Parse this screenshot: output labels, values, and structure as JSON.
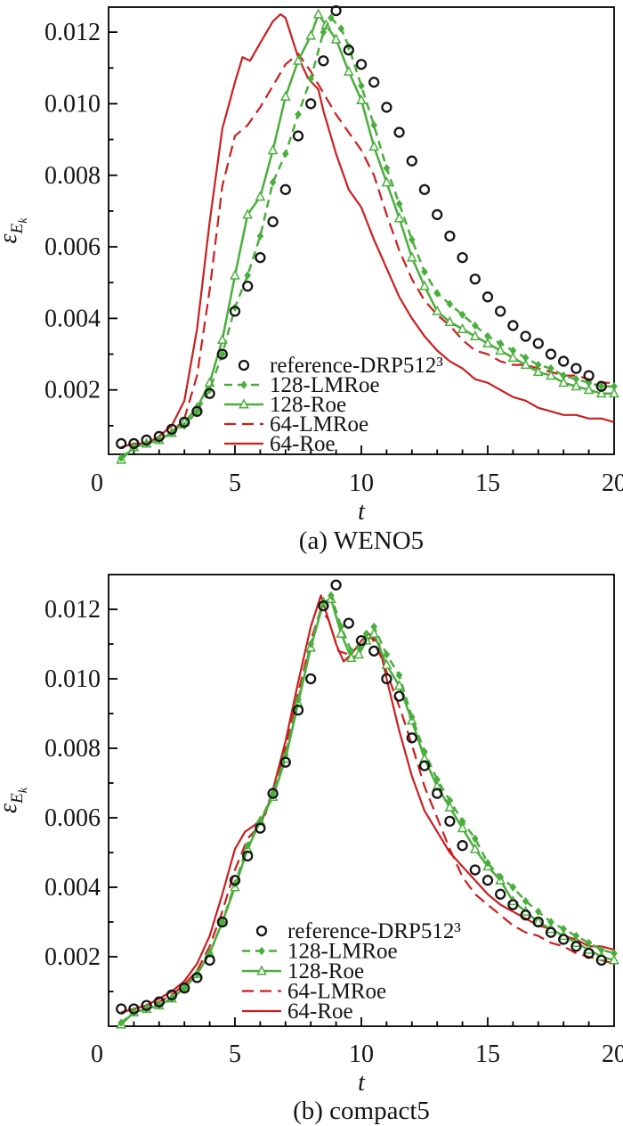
{
  "figure": {
    "caption_a": "(a) WENO5",
    "caption_b": "(b) compact5"
  },
  "colors": {
    "reference": "#151515",
    "green_128": "#4aae3c",
    "red_64": "#cb1f1e"
  },
  "chart_data": [
    {
      "type": "line",
      "panel": "a",
      "title": "(a) WENO5",
      "xlabel": "t",
      "ylabel": "epsilon_Ek",
      "ylabel_parts": [
        "ε",
        "E",
        "k"
      ],
      "xlim": [
        0,
        20
      ],
      "ylim": [
        0.0002,
        0.0127
      ],
      "xticks_major": [
        0,
        5,
        10,
        15,
        20
      ],
      "xtick_labels": [
        "0",
        "5",
        "10",
        "15",
        "20"
      ],
      "yticks_major": [
        0.002,
        0.004,
        0.006,
        0.008,
        0.01,
        0.012
      ],
      "ytick_labels": [
        "0.002",
        "0.004",
        "0.006",
        "0.008",
        "0.010",
        "0.012"
      ],
      "yticks_minor": [
        0.001,
        0.003,
        0.005,
        0.007,
        0.009,
        0.011
      ],
      "grid": false,
      "legend_position": "inside-bottom-center",
      "series": [
        {
          "label": "reference-DRP512³",
          "color": "#151515",
          "line": "none",
          "marker": "circle-open",
          "x": [
            0.5,
            1,
            1.5,
            2,
            2.5,
            3,
            3.5,
            4,
            4.5,
            5,
            5.5,
            6,
            6.5,
            7,
            7.5,
            8,
            8.5,
            9,
            9.5,
            10,
            10.5,
            11,
            11.5,
            12,
            12.5,
            13,
            13.5,
            14,
            14.5,
            15,
            15.5,
            16,
            16.5,
            17,
            17.5,
            18,
            18.5,
            19,
            19.5
          ],
          "y": [
            0.0005,
            0.0005,
            0.0006,
            0.0007,
            0.0009,
            0.0011,
            0.0014,
            0.0019,
            0.003,
            0.0042,
            0.0049,
            0.0057,
            0.0067,
            0.0076,
            0.0091,
            0.01,
            0.0112,
            0.0126,
            0.0115,
            0.0111,
            0.0106,
            0.0099,
            0.0092,
            0.0084,
            0.0076,
            0.0069,
            0.0063,
            0.0057,
            0.0051,
            0.0046,
            0.0042,
            0.0038,
            0.0035,
            0.0033,
            0.003,
            0.0028,
            0.0026,
            0.0024,
            0.0021
          ]
        },
        {
          "label": "128-LMRoe",
          "color": "#4aae3c",
          "line": "dashed",
          "marker": "diamond-filled",
          "x": [
            0.5,
            1,
            1.5,
            2,
            2.5,
            3,
            3.5,
            4,
            4.5,
            5,
            5.5,
            6,
            6.5,
            7,
            7.5,
            8,
            8.5,
            8.8,
            9.2,
            9.5,
            10,
            10.5,
            11,
            11.5,
            12,
            12.5,
            13,
            13.5,
            14,
            14.5,
            15,
            15.5,
            16,
            16.5,
            17,
            17.5,
            18,
            18.5,
            19,
            19.5,
            20
          ],
          "y": [
            0.0001,
            0.0004,
            0.0005,
            0.0006,
            0.0008,
            0.001,
            0.0014,
            0.002,
            0.003,
            0.0043,
            0.0052,
            0.0063,
            0.0078,
            0.0086,
            0.0097,
            0.0107,
            0.012,
            0.0124,
            0.0121,
            0.0116,
            0.0105,
            0.0094,
            0.0082,
            0.0072,
            0.0062,
            0.0053,
            0.0047,
            0.0044,
            0.0041,
            0.0038,
            0.0035,
            0.0033,
            0.0031,
            0.0029,
            0.0027,
            0.0026,
            0.0024,
            0.0023,
            0.0022,
            0.0021,
            0.0021
          ]
        },
        {
          "label": "128-Roe",
          "color": "#4aae3c",
          "line": "solid",
          "marker": "triangle-open",
          "x": [
            0.5,
            1,
            1.5,
            2,
            2.5,
            3,
            3.5,
            4,
            4.5,
            5,
            5.5,
            6,
            6.5,
            7,
            7.5,
            8,
            8.3,
            8.6,
            9,
            9.5,
            10,
            10.5,
            11,
            11.5,
            12,
            12.5,
            13,
            13.5,
            14,
            14.5,
            15,
            15.5,
            16,
            16.5,
            17,
            17.5,
            18,
            18.5,
            19,
            19.5,
            20
          ],
          "y": [
            5e-05,
            0.0004,
            0.0005,
            0.0006,
            0.0008,
            0.0011,
            0.0015,
            0.0022,
            0.0034,
            0.0052,
            0.0069,
            0.0074,
            0.0087,
            0.0102,
            0.0112,
            0.0119,
            0.0125,
            0.0122,
            0.0118,
            0.0109,
            0.0101,
            0.0088,
            0.0078,
            0.0068,
            0.0057,
            0.0049,
            0.0042,
            0.0039,
            0.0037,
            0.0035,
            0.0033,
            0.0031,
            0.0029,
            0.0027,
            0.0025,
            0.0024,
            0.0022,
            0.0021,
            0.002,
            0.0019,
            0.0019
          ]
        },
        {
          "label": "64-LMRoe",
          "color": "#cb1f1e",
          "line": "dashed",
          "marker": "none",
          "x": [
            0.5,
            1,
            1.5,
            2,
            2.5,
            3,
            3.5,
            4,
            4.5,
            5,
            5.5,
            6,
            6.5,
            7,
            7.5,
            8,
            8.5,
            9,
            9.5,
            10,
            10.5,
            11,
            11.5,
            12,
            12.5,
            13,
            13.5,
            14,
            14.5,
            15,
            15.5,
            16,
            16.5,
            17,
            17.5,
            18,
            18.5,
            19,
            19.5,
            20
          ],
          "y": [
            0.0004,
            0.0005,
            0.0005,
            0.0006,
            0.0008,
            0.0012,
            0.0024,
            0.0048,
            0.0077,
            0.0091,
            0.0094,
            0.0099,
            0.0105,
            0.0111,
            0.0114,
            0.0109,
            0.0103,
            0.0097,
            0.0092,
            0.0087,
            0.008,
            0.0069,
            0.0059,
            0.0051,
            0.0045,
            0.0041,
            0.0038,
            0.0034,
            0.0031,
            0.003,
            0.0028,
            0.0027,
            0.0027,
            0.0026,
            0.0025,
            0.0024,
            0.0024,
            0.0023,
            0.0022,
            0.0022
          ]
        },
        {
          "label": "64-Roe",
          "color": "#cb1f1e",
          "line": "solid",
          "marker": "none",
          "x": [
            0.5,
            1,
            1.5,
            2,
            2.5,
            3,
            3.5,
            4,
            4.5,
            5,
            5.3,
            5.6,
            6,
            6.5,
            6.8,
            7,
            7.5,
            7.9,
            8.3,
            8.5,
            9,
            9.5,
            10,
            10.5,
            11,
            11.5,
            12,
            12.5,
            13,
            13.5,
            14,
            14.5,
            15,
            15.5,
            16,
            16.5,
            17,
            17.5,
            18,
            18.5,
            19,
            19.5,
            20
          ],
          "y": [
            0.0004,
            0.0005,
            0.0005,
            0.0007,
            0.001,
            0.0017,
            0.0037,
            0.0067,
            0.0093,
            0.0106,
            0.0113,
            0.0112,
            0.0117,
            0.0123,
            0.0125,
            0.0124,
            0.0113,
            0.0107,
            0.0104,
            0.0098,
            0.0086,
            0.0076,
            0.0071,
            0.0062,
            0.0054,
            0.0046,
            0.004,
            0.0035,
            0.0031,
            0.0028,
            0.0026,
            0.0023,
            0.0022,
            0.002,
            0.0018,
            0.0017,
            0.0015,
            0.0014,
            0.0013,
            0.0013,
            0.0012,
            0.0012,
            0.0011
          ]
        }
      ]
    },
    {
      "type": "line",
      "panel": "b",
      "title": "(b) compact5",
      "xlabel": "t",
      "ylabel": "epsilon_Ek",
      "ylabel_parts": [
        "ε",
        "E",
        "k"
      ],
      "xlim": [
        0,
        20
      ],
      "ylim": [
        0,
        0.013
      ],
      "xticks_major": [
        0,
        5,
        10,
        15,
        20
      ],
      "xtick_labels": [
        "0",
        "5",
        "10",
        "15",
        "20"
      ],
      "yticks_major": [
        0.002,
        0.004,
        0.006,
        0.008,
        0.01,
        0.012
      ],
      "ytick_labels": [
        "0.002",
        "0.004",
        "0.006",
        "0.008",
        "0.010",
        "0.012"
      ],
      "yticks_minor": [
        0.001,
        0.003,
        0.005,
        0.007,
        0.009,
        0.011
      ],
      "grid": false,
      "legend_position": "inside-bottom-center",
      "series": [
        {
          "label": "reference-DRP512³",
          "color": "#151515",
          "line": "none",
          "marker": "circle-open",
          "x": [
            0.5,
            1,
            1.5,
            2,
            2.5,
            3,
            3.5,
            4,
            4.5,
            5,
            5.5,
            6,
            6.5,
            7,
            7.5,
            8,
            8.5,
            9,
            9.5,
            10,
            10.5,
            11,
            11.5,
            12,
            12.5,
            13,
            13.5,
            14,
            14.5,
            15,
            15.5,
            16,
            16.5,
            17,
            17.5,
            18,
            18.5,
            19,
            19.5
          ],
          "y": [
            0.0005,
            0.0005,
            0.0006,
            0.0007,
            0.0009,
            0.0011,
            0.0014,
            0.0019,
            0.003,
            0.0042,
            0.0049,
            0.0057,
            0.0067,
            0.0076,
            0.0091,
            0.01,
            0.0121,
            0.0127,
            0.0116,
            0.0111,
            0.0108,
            0.01,
            0.0095,
            0.0083,
            0.0075,
            0.0067,
            0.0059,
            0.0052,
            0.0045,
            0.0042,
            0.0038,
            0.0035,
            0.0032,
            0.003,
            0.0027,
            0.0025,
            0.0023,
            0.0021,
            0.0019
          ]
        },
        {
          "label": "128-LMRoe",
          "color": "#4aae3c",
          "line": "dashed",
          "marker": "diamond-filled",
          "x": [
            0.5,
            1,
            1.5,
            2,
            2.5,
            3,
            3.5,
            4,
            4.5,
            5,
            5.5,
            6,
            6.5,
            7,
            7.5,
            8,
            8.5,
            8.8,
            9.2,
            9.6,
            9.9,
            10.2,
            10.5,
            11,
            11.5,
            12,
            12.5,
            13,
            13.5,
            14,
            14.5,
            15,
            15.5,
            16,
            16.5,
            17,
            17.5,
            18,
            18.5,
            19,
            19.5,
            20
          ],
          "y": [
            0.0001,
            0.0004,
            0.0005,
            0.0006,
            0.0008,
            0.0011,
            0.0015,
            0.0021,
            0.003,
            0.0041,
            0.0052,
            0.0059,
            0.0067,
            0.0078,
            0.0094,
            0.011,
            0.0122,
            0.0124,
            0.0115,
            0.0108,
            0.0109,
            0.0113,
            0.0115,
            0.0107,
            0.0101,
            0.0089,
            0.0079,
            0.0071,
            0.0065,
            0.0059,
            0.0054,
            0.0047,
            0.0043,
            0.004,
            0.0036,
            0.0033,
            0.003,
            0.0028,
            0.0026,
            0.0024,
            0.0022,
            0.0021
          ]
        },
        {
          "label": "128-Roe",
          "color": "#4aae3c",
          "line": "solid",
          "marker": "triangle-open",
          "x": [
            0.5,
            1,
            1.5,
            2,
            2.5,
            3,
            3.5,
            4,
            4.5,
            5,
            5.5,
            6,
            6.5,
            7,
            7.5,
            8,
            8.5,
            8.8,
            9.2,
            9.6,
            9.9,
            10.2,
            10.5,
            11,
            11.5,
            12,
            12.5,
            13,
            13.5,
            14,
            14.5,
            15,
            15.5,
            16,
            16.5,
            17,
            17.5,
            18,
            18.5,
            19,
            19.5,
            20
          ],
          "y": [
            5e-05,
            0.0004,
            0.0005,
            0.0006,
            0.0008,
            0.0011,
            0.0015,
            0.0021,
            0.003,
            0.004,
            0.0051,
            0.0059,
            0.0066,
            0.0077,
            0.0093,
            0.0109,
            0.0122,
            0.0123,
            0.0113,
            0.0106,
            0.0107,
            0.0111,
            0.0113,
            0.0104,
            0.0098,
            0.0088,
            0.0077,
            0.0069,
            0.0063,
            0.0057,
            0.0051,
            0.0046,
            0.0042,
            0.0036,
            0.0033,
            0.003,
            0.0028,
            0.0026,
            0.0024,
            0.0022,
            0.002,
            0.0019
          ]
        },
        {
          "label": "64-LMRoe",
          "color": "#cb1f1e",
          "line": "dashed",
          "marker": "none",
          "x": [
            0.5,
            1,
            1.5,
            2,
            2.5,
            3,
            3.5,
            4,
            4.5,
            5,
            5.5,
            6,
            6.5,
            7,
            7.5,
            8,
            8.4,
            8.7,
            9.1,
            9.5,
            10,
            10.4,
            10.8,
            11.2,
            11.6,
            12,
            12.5,
            13,
            13.5,
            14,
            14.5,
            15,
            15.5,
            16,
            16.5,
            17,
            17.5,
            18,
            18.5,
            19,
            19.5,
            20
          ],
          "y": [
            0.0004,
            0.0005,
            0.0006,
            0.0007,
            0.0009,
            0.0012,
            0.0016,
            0.0023,
            0.0033,
            0.0045,
            0.0054,
            0.0058,
            0.0067,
            0.008,
            0.0096,
            0.0111,
            0.012,
            0.0117,
            0.0108,
            0.0107,
            0.011,
            0.0112,
            0.0106,
            0.0098,
            0.009,
            0.0081,
            0.0069,
            0.006,
            0.0051,
            0.0043,
            0.0038,
            0.0035,
            0.0032,
            0.0029,
            0.0027,
            0.0026,
            0.0024,
            0.0023,
            0.0021,
            0.002,
            0.0019,
            0.0018
          ]
        },
        {
          "label": "64-Roe",
          "color": "#cb1f1e",
          "line": "solid",
          "marker": "none",
          "x": [
            0.5,
            1,
            1.5,
            2,
            2.5,
            3,
            3.5,
            4,
            4.5,
            5,
            5.4,
            5.8,
            6.2,
            6.5,
            7,
            7.5,
            8,
            8.4,
            8.7,
            9,
            9.3,
            9.6,
            10,
            10.3,
            10.7,
            11,
            11.5,
            12,
            12.5,
            13,
            13.5,
            14,
            14.5,
            15,
            15.5,
            16,
            16.5,
            17,
            17.5,
            18,
            18.5,
            19,
            19.5,
            20
          ],
          "y": [
            0.0004,
            0.0005,
            0.0006,
            0.0008,
            0.001,
            0.0013,
            0.0018,
            0.0026,
            0.0038,
            0.0051,
            0.0056,
            0.0058,
            0.0061,
            0.0068,
            0.0082,
            0.0099,
            0.0115,
            0.0124,
            0.0117,
            0.011,
            0.0105,
            0.0107,
            0.0111,
            0.0113,
            0.011,
            0.01,
            0.0085,
            0.0072,
            0.0062,
            0.0056,
            0.005,
            0.0046,
            0.0042,
            0.0038,
            0.0035,
            0.0033,
            0.0031,
            0.0029,
            0.0028,
            0.0026,
            0.0025,
            0.0023,
            0.0023,
            0.0022
          ]
        }
      ]
    }
  ]
}
